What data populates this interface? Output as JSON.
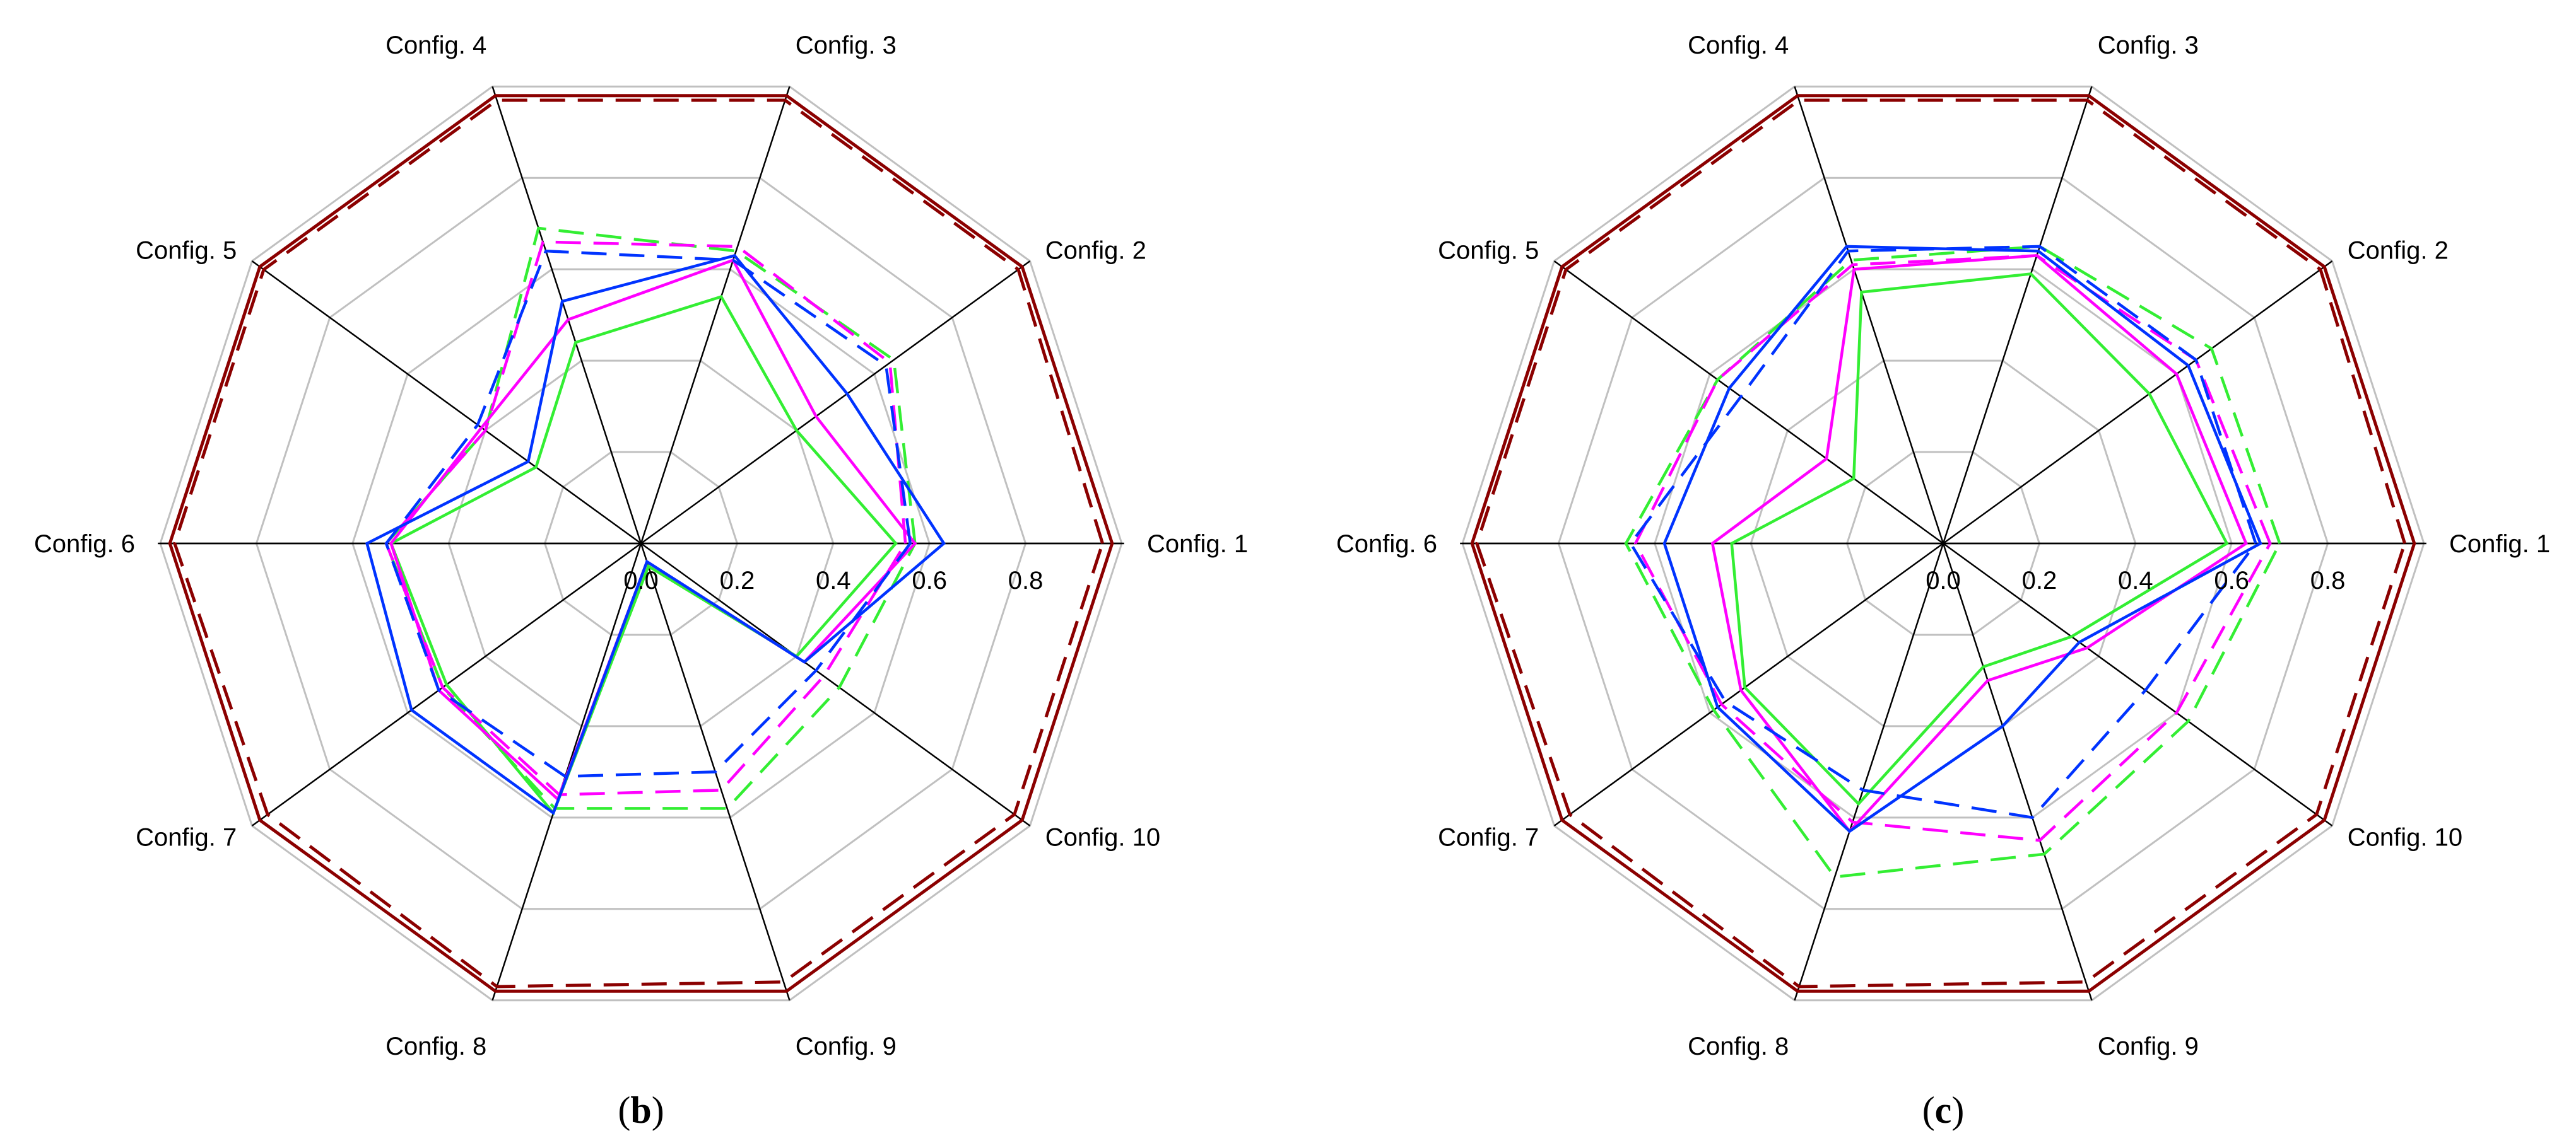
{
  "figure": {
    "panels": [
      {
        "id": "b",
        "open": "(",
        "letter": "b",
        "close": ")"
      },
      {
        "id": "c",
        "open": "(",
        "letter": "c",
        "close": ")"
      }
    ]
  },
  "chart_data": [
    {
      "type": "radar",
      "panel": "b",
      "categories": [
        "Config. 1",
        "Config. 2",
        "Config. 3",
        "Config. 4",
        "Config. 5",
        "Config. 6",
        "Config. 7",
        "Config. 8",
        "Config. 9",
        "Config. 10"
      ],
      "rlim": [
        0,
        1
      ],
      "ticks": [
        0.0,
        0.2,
        0.4,
        0.6,
        0.8
      ],
      "tick_labels": [
        "0.0",
        "0.2",
        "0.4",
        "0.6",
        "0.8"
      ],
      "grid": true,
      "series": [
        {
          "name": "series-dark-red-solid",
          "color": "#8b0000",
          "dash": false,
          "values": [
            0.98,
            0.98,
            0.98,
            0.98,
            0.98,
            0.98,
            0.98,
            0.98,
            0.98,
            0.98
          ]
        },
        {
          "name": "series-dark-red-dashed",
          "color": "#8b0000",
          "dash": true,
          "values": [
            0.96,
            0.97,
            0.97,
            0.97,
            0.97,
            0.97,
            0.96,
            0.97,
            0.96,
            0.96
          ]
        },
        {
          "name": "series-green-solid",
          "color": "#33ee33",
          "dash": false,
          "values": [
            0.53,
            0.4,
            0.54,
            0.44,
            0.27,
            0.52,
            0.5,
            0.59,
            0.05,
            0.4
          ]
        },
        {
          "name": "series-green-dashed",
          "color": "#33ee33",
          "dash": true,
          "values": [
            0.57,
            0.65,
            0.64,
            0.69,
            0.4,
            0.53,
            0.51,
            0.58,
            0.58,
            0.51
          ]
        },
        {
          "name": "series-magenta-solid",
          "color": "#ff00ff",
          "dash": false,
          "values": [
            0.57,
            0.45,
            0.62,
            0.49,
            0.41,
            0.52,
            0.52,
            0.56,
            0.04,
            0.42
          ]
        },
        {
          "name": "series-magenta-dashed",
          "color": "#ff00ff",
          "dash": true,
          "values": [
            0.55,
            0.64,
            0.65,
            0.66,
            0.4,
            0.53,
            0.51,
            0.55,
            0.54,
            0.47
          ]
        },
        {
          "name": "series-blue-solid",
          "color": "#0033ff",
          "dash": false,
          "values": [
            0.63,
            0.53,
            0.63,
            0.53,
            0.29,
            0.57,
            0.59,
            0.59,
            0.04,
            0.42
          ]
        },
        {
          "name": "series-blue-dashed",
          "color": "#0033ff",
          "dash": true,
          "values": [
            0.56,
            0.63,
            0.62,
            0.64,
            0.42,
            0.53,
            0.52,
            0.51,
            0.5,
            0.45
          ]
        }
      ]
    },
    {
      "type": "radar",
      "panel": "c",
      "categories": [
        "Config. 1",
        "Config. 2",
        "Config. 3",
        "Config. 4",
        "Config. 5",
        "Config. 6",
        "Config. 7",
        "Config. 8",
        "Config. 9",
        "Config. 10"
      ],
      "rlim": [
        0,
        1
      ],
      "ticks": [
        0.0,
        0.2,
        0.4,
        0.6,
        0.8
      ],
      "tick_labels": [
        "0.0",
        "0.2",
        "0.4",
        "0.6",
        "0.8"
      ],
      "grid": true,
      "series": [
        {
          "name": "series-dark-red-solid",
          "color": "#8b0000",
          "dash": false,
          "values": [
            0.98,
            0.98,
            0.98,
            0.98,
            0.98,
            0.98,
            0.98,
            0.98,
            0.98,
            0.98
          ]
        },
        {
          "name": "series-dark-red-dashed",
          "color": "#8b0000",
          "dash": true,
          "values": [
            0.96,
            0.97,
            0.97,
            0.97,
            0.97,
            0.97,
            0.96,
            0.97,
            0.96,
            0.96
          ]
        },
        {
          "name": "series-green-solid",
          "color": "#33ee33",
          "dash": false,
          "values": [
            0.59,
            0.53,
            0.59,
            0.55,
            0.23,
            0.44,
            0.51,
            0.57,
            0.27,
            0.33
          ]
        },
        {
          "name": "series-green-dashed",
          "color": "#33ee33",
          "dash": true,
          "values": [
            0.7,
            0.69,
            0.65,
            0.62,
            0.58,
            0.66,
            0.59,
            0.73,
            0.68,
            0.63
          ]
        },
        {
          "name": "series-magenta-solid",
          "color": "#ff00ff",
          "dash": false,
          "values": [
            0.63,
            0.6,
            0.63,
            0.6,
            0.3,
            0.48,
            0.52,
            0.63,
            0.3,
            0.37
          ]
        },
        {
          "name": "series-magenta-dashed",
          "color": "#ff00ff",
          "dash": true,
          "values": [
            0.68,
            0.65,
            0.63,
            0.61,
            0.58,
            0.64,
            0.57,
            0.61,
            0.65,
            0.6
          ]
        },
        {
          "name": "series-blue-solid",
          "color": "#0033ff",
          "dash": false,
          "values": [
            0.66,
            0.63,
            0.64,
            0.65,
            0.55,
            0.58,
            0.58,
            0.63,
            0.4,
            0.35
          ]
        },
        {
          "name": "series-blue-dashed",
          "color": "#0033ff",
          "dash": true,
          "values": [
            0.65,
            0.65,
            0.65,
            0.64,
            0.52,
            0.65,
            0.56,
            0.54,
            0.6,
            0.52
          ]
        }
      ]
    }
  ]
}
